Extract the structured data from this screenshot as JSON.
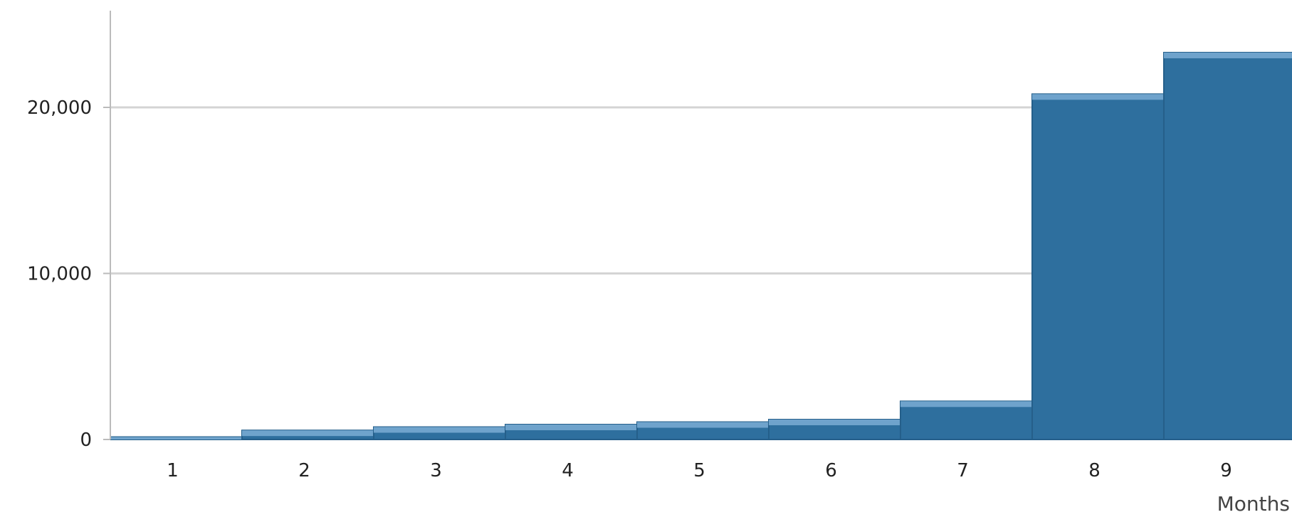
{
  "chart_data": {
    "type": "bar",
    "title": "",
    "xlabel": "Months",
    "ylabel": "",
    "categories": [
      "1",
      "2",
      "3",
      "4",
      "5",
      "6",
      "7",
      "8",
      "9"
    ],
    "values": [
      150,
      550,
      750,
      900,
      1050,
      1200,
      2300,
      20800,
      23300
    ],
    "ylim": [
      0,
      25000
    ],
    "yticks": [
      0,
      10000,
      20000
    ],
    "ytick_labels": [
      "0",
      "10,000",
      "20,000"
    ],
    "grid": true,
    "legend": "none",
    "colors": {
      "bar_fill": "#2e6f9e",
      "bar_top": "#6fa3cc",
      "bar_border": "#255f8a",
      "grid": "#d4d4d4",
      "axis": "#bbbbbb"
    }
  }
}
